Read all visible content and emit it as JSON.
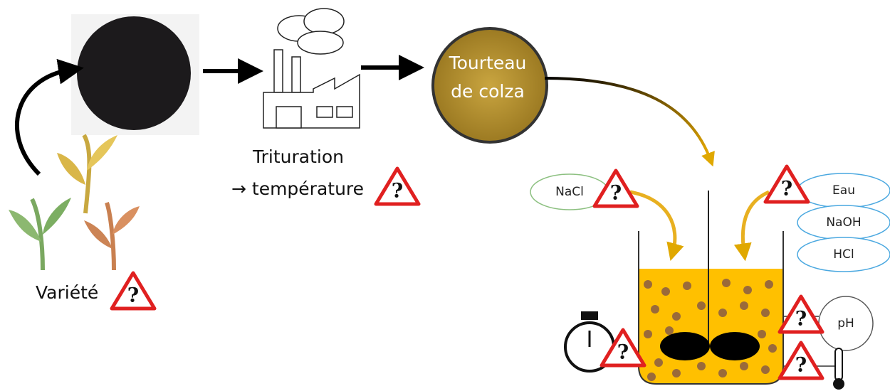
{
  "variety": "Variété",
  "crushing": {
    "label": "Trituration",
    "detail": "→ température"
  },
  "cake": [
    "Tourteau",
    "de colza"
  ],
  "reactor": {
    "salt": "NaCl",
    "solvents": [
      "Eau",
      "NaOH",
      "HCl"
    ],
    "sensor": "pH"
  },
  "warning": "?"
}
